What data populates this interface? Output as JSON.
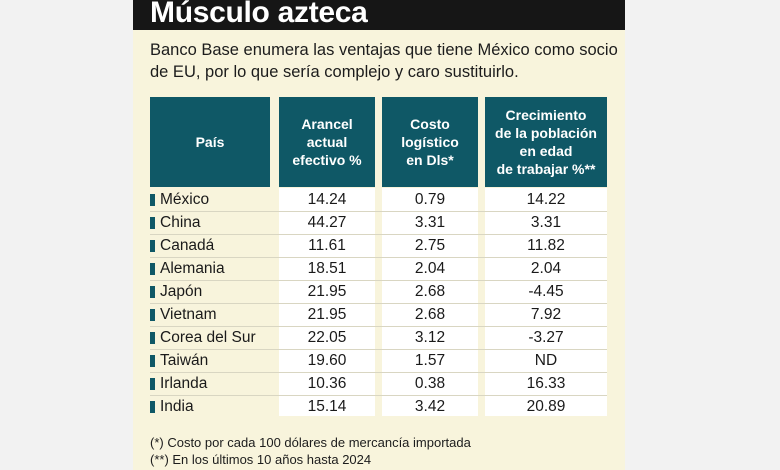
{
  "title": "Músculo azteca",
  "subtitle": "Banco Base enumera las ventajas que tiene México como socio de EU, por lo que sería complejo y caro sustituirlo.",
  "headers": {
    "country": "País",
    "tariff": [
      "Arancel",
      "actual",
      "efectivo %"
    ],
    "cost": [
      "Costo",
      "logístico",
      "en Dls*"
    ],
    "growth": [
      "Crecimiento",
      "de la población",
      "en edad",
      "de trabajar %**"
    ]
  },
  "rows": [
    {
      "country": "México",
      "tariff": "14.24",
      "cost": "0.79",
      "growth": "14.22"
    },
    {
      "country": "China",
      "tariff": "44.27",
      "cost": "3.31",
      "growth": "3.31"
    },
    {
      "country": "Canadá",
      "tariff": "11.61",
      "cost": "2.75",
      "growth": "11.82"
    },
    {
      "country": "Alemania",
      "tariff": "18.51",
      "cost": "2.04",
      "growth": "2.04"
    },
    {
      "country": "Japón",
      "tariff": "21.95",
      "cost": "2.68",
      "growth": "-4.45"
    },
    {
      "country": "Vietnam",
      "tariff": "21.95",
      "cost": "2.68",
      "growth": "7.92"
    },
    {
      "country": "Corea del Sur",
      "tariff": "22.05",
      "cost": "3.12",
      "growth": "-3.27"
    },
    {
      "country": "Taiwán",
      "tariff": "19.60",
      "cost": "1.57",
      "growth": "ND"
    },
    {
      "country": "Irlanda",
      "tariff": "10.36",
      "cost": "0.38",
      "growth": "16.33"
    },
    {
      "country": "India",
      "tariff": "15.14",
      "cost": "3.42",
      "growth": "20.89"
    }
  ],
  "notes": [
    "(*) Costo por cada 100 dólares de mercancía importada",
    "(**) En los últimos 10 años hasta 2024"
  ],
  "colors": {
    "header": "#0f5866",
    "title_bar": "#161616",
    "card": "#f8f4dc"
  }
}
